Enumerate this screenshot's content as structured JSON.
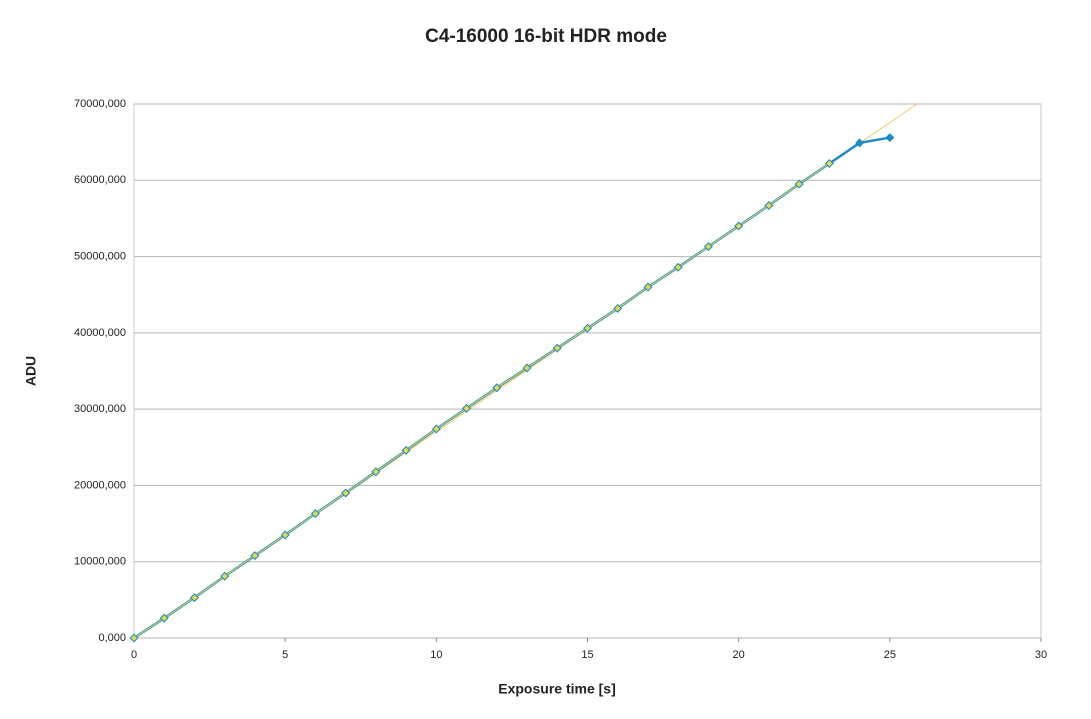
{
  "chart_data": {
    "type": "line",
    "title": "C4-16000 16-bit HDR mode",
    "x_label": "Exposure time [s]",
    "y_label": "ADU",
    "x": [
      0,
      1,
      2,
      3,
      4,
      5,
      6,
      7,
      8,
      9,
      10,
      11,
      12,
      13,
      14,
      15,
      16,
      17,
      18,
      19,
      20,
      21,
      22,
      23,
      24,
      25
    ],
    "series": [
      {
        "color": "#1e8bc3",
        "marker": "diamond",
        "width": 2.5,
        "values": [
          0,
          2600,
          5300,
          8100,
          10800,
          13500,
          16300,
          19000,
          21800,
          24600,
          27400,
          30100,
          32800,
          35400,
          38000,
          40600,
          43200,
          46000,
          48600,
          51300,
          54000,
          56700,
          59500,
          62200,
          64900,
          65600
        ]
      },
      {
        "color": "#e6d84a",
        "marker": "diamond",
        "width": 1,
        "values": [
          0,
          2600,
          5300,
          8100,
          10800,
          13500,
          16300,
          19000,
          21800,
          24600,
          27400,
          30100,
          32800,
          35400,
          38000,
          40600,
          43200,
          46000,
          48600,
          51300,
          54000,
          56700,
          59500,
          62200,
          null,
          null
        ]
      },
      {
        "color": "#f5c96b",
        "width": 1,
        "x": [
          0,
          25.9
        ],
        "values": [
          0,
          70000
        ]
      }
    ],
    "xlim": [
      0,
      30
    ],
    "xticks": [
      0,
      5,
      10,
      15,
      20,
      25,
      30
    ],
    "ylim": [
      0,
      70000
    ],
    "yticks": [
      {
        "value": 0,
        "label": "0,000"
      },
      {
        "value": 10000,
        "label": "10000,000"
      },
      {
        "value": 20000,
        "label": "20000,000"
      },
      {
        "value": 30000,
        "label": "30000,000"
      },
      {
        "value": 40000,
        "label": "40000,000"
      },
      {
        "value": 50000,
        "label": "50000,000"
      },
      {
        "value": 60000,
        "label": "60000,000"
      },
      {
        "value": 70000,
        "label": "70000,000"
      }
    ],
    "grid": true
  }
}
